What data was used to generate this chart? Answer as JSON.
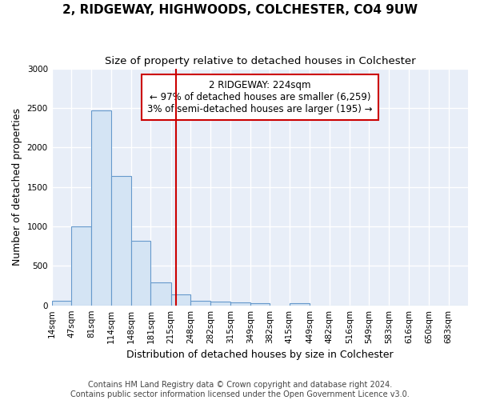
{
  "title1": "2, RIDGEWAY, HIGHWOODS, COLCHESTER, CO4 9UW",
  "title2": "Size of property relative to detached houses in Colchester",
  "xlabel": "Distribution of detached houses by size in Colchester",
  "ylabel": "Number of detached properties",
  "bin_labels": [
    "14sqm",
    "47sqm",
    "81sqm",
    "114sqm",
    "148sqm",
    "181sqm",
    "215sqm",
    "248sqm",
    "282sqm",
    "315sqm",
    "349sqm",
    "382sqm",
    "415sqm",
    "449sqm",
    "482sqm",
    "516sqm",
    "549sqm",
    "583sqm",
    "616sqm",
    "650sqm",
    "683sqm"
  ],
  "bin_edges": [
    14,
    47,
    81,
    114,
    148,
    181,
    215,
    248,
    282,
    315,
    349,
    382,
    415,
    449,
    482,
    516,
    549,
    583,
    616,
    650,
    683
  ],
  "bar_heights": [
    60,
    1000,
    2470,
    1640,
    820,
    290,
    135,
    60,
    50,
    40,
    30,
    0,
    30,
    0,
    0,
    0,
    0,
    0,
    0,
    0,
    0
  ],
  "bar_color": "#d4e4f4",
  "bar_edge_color": "#6699cc",
  "vline_x": 224,
  "vline_color": "#cc0000",
  "annotation_line1": "2 RIDGEWAY: 224sqm",
  "annotation_line2": "← 97% of detached houses are smaller (6,259)",
  "annotation_line3": "3% of semi-detached houses are larger (195) →",
  "annotation_box_color": "#ffffff",
  "annotation_box_edge": "#cc0000",
  "annotation_fontsize": 8.5,
  "ylim": [
    0,
    3000
  ],
  "yticks": [
    0,
    500,
    1000,
    1500,
    2000,
    2500,
    3000
  ],
  "footer1": "Contains HM Land Registry data © Crown copyright and database right 2024.",
  "footer2": "Contains public sector information licensed under the Open Government Licence v3.0.",
  "background_color": "#ffffff",
  "plot_bg_color": "#e8eef8",
  "grid_color": "#ffffff",
  "title1_fontsize": 11,
  "title2_fontsize": 9.5,
  "footer_fontsize": 7,
  "xlabel_fontsize": 9,
  "ylabel_fontsize": 9,
  "tick_fontsize": 7.5
}
